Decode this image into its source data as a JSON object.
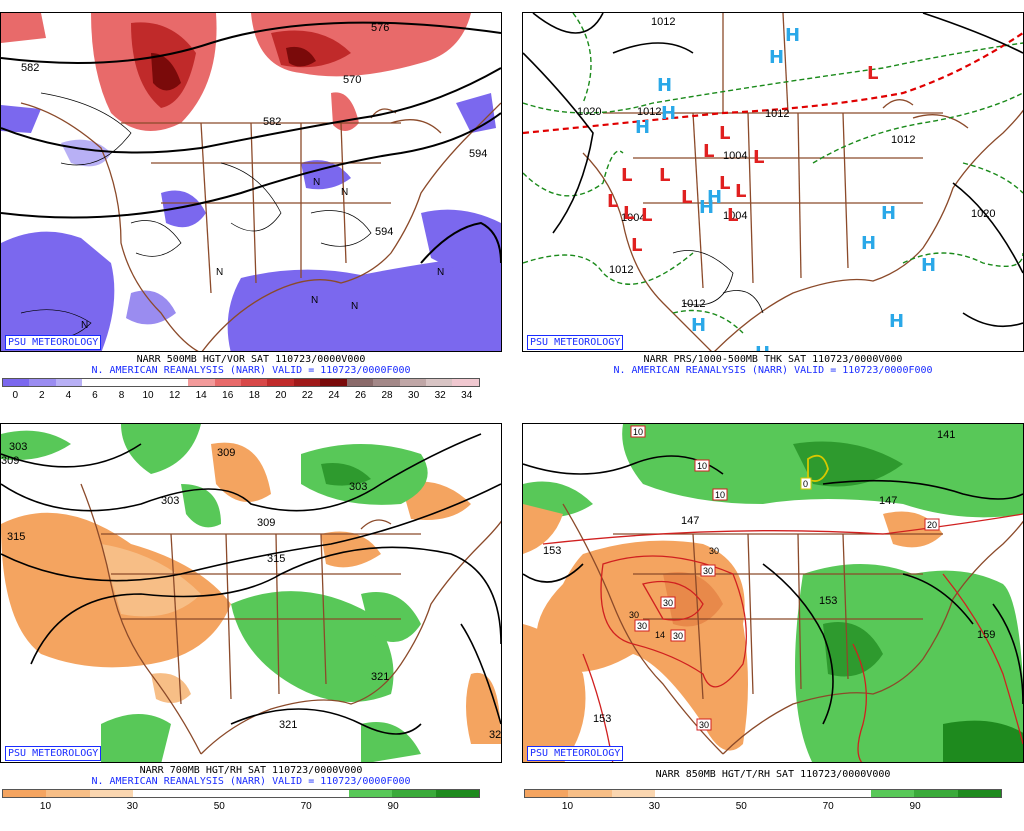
{
  "badge": "PSU METEOROLOGY",
  "panels": [
    {
      "line1": "NARR 500MB HGT/VOR SAT 110723/0000V000",
      "line2": "N. AMERICAN REANALYSIS (NARR) VALID = 110723/0000F000",
      "legend": {
        "colors": [
          "#7b68ee",
          "#9a8cf0",
          "#b8b0f5",
          "#ffffff",
          "#ffffff",
          "#ffffff",
          "#ffffff",
          "#f29a9a",
          "#e86a6a",
          "#d84848",
          "#c02a2a",
          "#a01a1a",
          "#7a0a0a",
          "#8a6a6a",
          "#a38888",
          "#c0a7a7",
          "#d8c4c4",
          "#f0c8d0"
        ],
        "labels": [
          "0",
          "2",
          "4",
          "6",
          "8",
          "10",
          "12",
          "14",
          "16",
          "18",
          "20",
          "22",
          "24",
          "26",
          "28",
          "30",
          "32",
          "34"
        ]
      },
      "labels": [
        "582",
        "570",
        "582",
        "594",
        "594",
        "576"
      ],
      "marks": [
        "N",
        "N",
        "N",
        "N",
        "N",
        "N",
        "N"
      ]
    },
    {
      "line1": "NARR PRS/1000-500MB THK SAT 110723/0000V000",
      "line2": "N. AMERICAN REANALYSIS (NARR) VALID = 110723/0000F000",
      "labels": [
        "1012",
        "1020",
        "1012",
        "1012",
        "1012",
        "1004",
        "1020",
        "1012",
        "1012",
        "1004",
        "1004"
      ],
      "highs": [
        "H",
        "H",
        "H",
        "H",
        "H",
        "H",
        "H",
        "H",
        "H",
        "H",
        "H",
        "H",
        "H"
      ],
      "lows": [
        "L",
        "L",
        "L",
        "L",
        "L",
        "L",
        "L",
        "L",
        "L",
        "L",
        "L",
        "L",
        "L",
        "L"
      ]
    },
    {
      "line1": "NARR 700MB HGT/RH SAT 110723/0000V000",
      "line2": "N. AMERICAN REANALYSIS (NARR) VALID = 110723/0000F000",
      "legend": {
        "colors": [
          "#f4a460",
          "#f7be86",
          "#fad6b0",
          "#ffffff",
          "#ffffff",
          "#ffffff",
          "#ffffff",
          "#ffffff",
          "#58c858",
          "#3aaa3a",
          "#1e8a1e"
        ],
        "labels": [
          "10",
          "30",
          "50",
          "70",
          "90"
        ]
      },
      "labels": [
        "303",
        "309",
        "309",
        "303",
        "303",
        "309",
        "315",
        "315",
        "321",
        "321",
        "32"
      ]
    },
    {
      "line1": "NARR 850MB HGT/T/RH SAT 110723/0000V000",
      "line2": "N. AMERICAN REANALYSIS (NARR) VALID = 110723/0000F000",
      "legend": {
        "colors": [
          "#f4a460",
          "#f7be86",
          "#fad6b0",
          "#ffffff",
          "#ffffff",
          "#ffffff",
          "#ffffff",
          "#ffffff",
          "#58c858",
          "#3aaa3a",
          "#1e8a1e"
        ],
        "labels": [
          "10",
          "30",
          "50",
          "70",
          "90"
        ]
      },
      "labels": [
        "153",
        "147",
        "147",
        "141",
        "153",
        "153",
        "159"
      ],
      "boxed": [
        "10",
        "10",
        "10",
        "0",
        "20",
        "30",
        "30",
        "30",
        "30",
        "30"
      ],
      "plain": [
        "30",
        "14",
        "30"
      ]
    }
  ]
}
